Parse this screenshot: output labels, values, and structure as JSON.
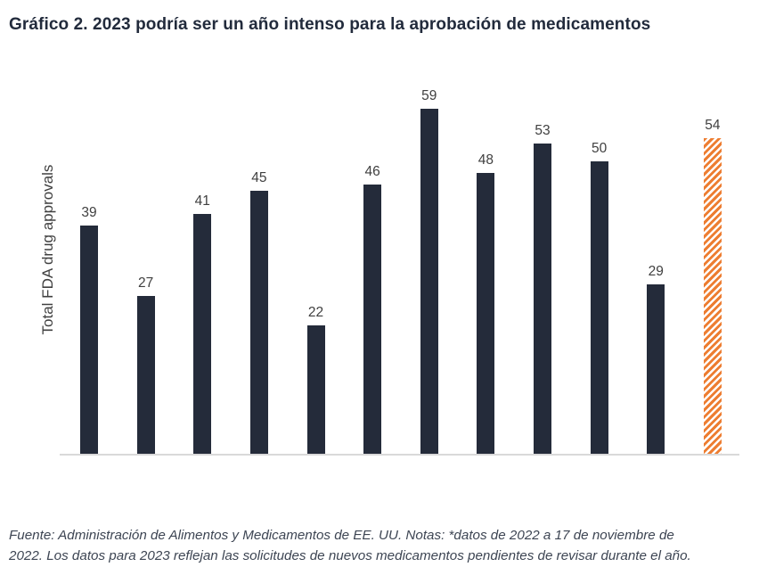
{
  "page": {
    "title": "Gráfico 2. 2023 podría ser un año intenso para la aprobación de medicamentos",
    "source_note": "Fuente: Administración de Alimentos y Medicamentos de EE. UU. Notas: *datos de 2022 a 17 de noviembre de\n2022. Los datos para 2023 reflejan las solicitudes de nuevos medicamentos pendientes de revisar durante el año."
  },
  "chart_data": {
    "type": "bar",
    "title": "Gráfico 2. 2023 podría ser un año intenso para la aprobación de medicamentos",
    "ylabel": "Total FDA drug approvals",
    "xlabel": "",
    "values": [
      39,
      27,
      41,
      45,
      22,
      46,
      59,
      48,
      53,
      50,
      29,
      54
    ],
    "data_labels": [
      "39",
      "27",
      "41",
      "45",
      "22",
      "46",
      "59",
      "48",
      "53",
      "50",
      "29",
      "54"
    ],
    "x_tick_labels_visible": false,
    "ylim": [
      0,
      65
    ],
    "grid": false,
    "legend": false,
    "bar_color": "#242b3a",
    "highlight_index": 11,
    "highlight_color": "#ed7d31",
    "highlight_style": "diagonal-hatch",
    "baseline_color": "#d9d9d9"
  }
}
